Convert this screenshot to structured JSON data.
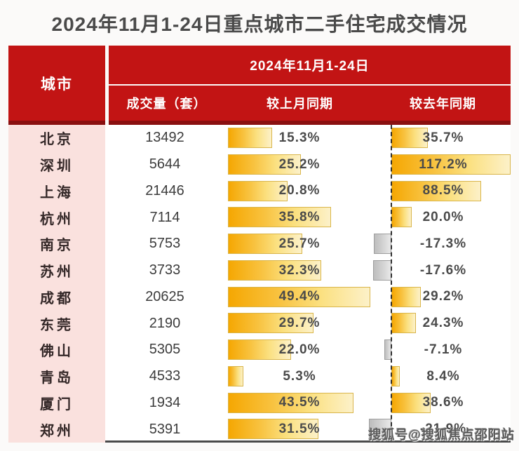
{
  "title": "2024年11月1-24日重点城市二手住宅成交情况",
  "header": {
    "city": "城市",
    "period": "2024年11月1-24日",
    "volume": "成交量（套）",
    "mom": "较上月同期",
    "yoy": "较去年同期"
  },
  "watermark": "搜狐号@搜狐焦点邵阳站",
  "colors": {
    "header_red": "#c21414",
    "header_red_dark": "#8a1010",
    "city_column_pink": "#fae1de",
    "positive_bar_gold": "#f5a702",
    "positive_bar_light": "#fcf1c9",
    "negative_bar_gray": "#c9c9c9",
    "title_text": "#4a4a4a"
  },
  "chart_data": {
    "type": "bar",
    "title": "2024年11月1-24日重点城市二手住宅成交情况",
    "group_header": "2024年11月1-24日",
    "columns": [
      "城市",
      "成交量（套）",
      "较上月同期",
      "较去年同期"
    ],
    "legend_position": "none",
    "grid": false,
    "axis_hints": {
      "mom_implied_max": 50,
      "yoy_implied_range": [
        -25,
        120
      ],
      "negative_bars_colored_gray": true
    },
    "rows": [
      {
        "city": "北京",
        "volume": "13492",
        "mom": 15.3,
        "mom_label": "15.3%",
        "yoy": 35.7,
        "yoy_label": "35.7%"
      },
      {
        "city": "深圳",
        "volume": "5644",
        "mom": 25.2,
        "mom_label": "25.2%",
        "yoy": 117.2,
        "yoy_label": "117.2%"
      },
      {
        "city": "上海",
        "volume": "21446",
        "mom": 20.8,
        "mom_label": "20.8%",
        "yoy": 88.5,
        "yoy_label": "88.5%"
      },
      {
        "city": "杭州",
        "volume": "7114",
        "mom": 35.8,
        "mom_label": "35.8%",
        "yoy": 20.0,
        "yoy_label": "20.0%"
      },
      {
        "city": "南京",
        "volume": "5753",
        "mom": 25.7,
        "mom_label": "25.7%",
        "yoy": -17.3,
        "yoy_label": "-17.3%"
      },
      {
        "city": "苏州",
        "volume": "3733",
        "mom": 32.3,
        "mom_label": "32.3%",
        "yoy": -17.6,
        "yoy_label": "-17.6%"
      },
      {
        "city": "成都",
        "volume": "20625",
        "mom": 49.4,
        "mom_label": "49.4%",
        "yoy": 29.2,
        "yoy_label": "29.2%"
      },
      {
        "city": "东莞",
        "volume": "2190",
        "mom": 29.7,
        "mom_label": "29.7%",
        "yoy": 24.3,
        "yoy_label": "24.3%"
      },
      {
        "city": "佛山",
        "volume": "5305",
        "mom": 22.0,
        "mom_label": "22.0%",
        "yoy": -7.1,
        "yoy_label": "-7.1%"
      },
      {
        "city": "青岛",
        "volume": "4533",
        "mom": 5.3,
        "mom_label": "5.3%",
        "yoy": 8.4,
        "yoy_label": "8.4%"
      },
      {
        "city": "厦门",
        "volume": "1934",
        "mom": 43.5,
        "mom_label": "43.5%",
        "yoy": 38.6,
        "yoy_label": "38.6%"
      },
      {
        "city": "郑州",
        "volume": "5391",
        "mom": 31.5,
        "mom_label": "31.5%",
        "yoy": -21.9,
        "yoy_label": "-21.9%"
      }
    ]
  }
}
